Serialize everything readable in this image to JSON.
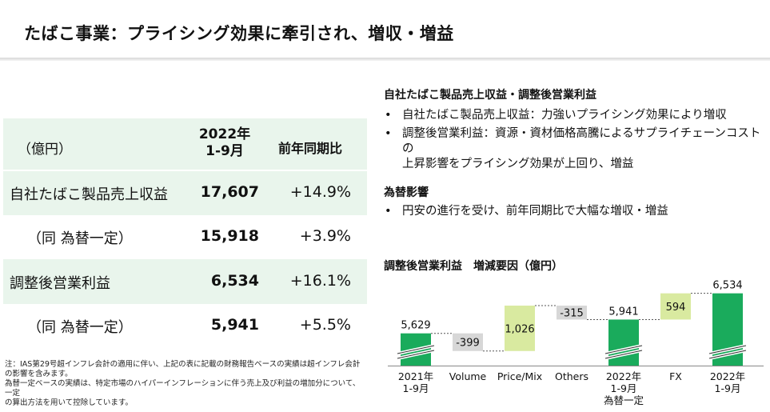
{
  "title": "たばこ事業：プライシング効果に牽引され、増収・増益",
  "table": {
    "unit": "（億円）",
    "period_line1": "2022年",
    "period_line2": "1-9月",
    "yoy_header": "前年同期比",
    "rows": [
      {
        "label": "自社たばこ製品売上収益",
        "value": "17,607",
        "yoy": "+14.9%"
      },
      {
        "label": "（同 為替一定）",
        "value": "15,918",
        "yoy": "+3.9%"
      },
      {
        "label": "調整後営業利益",
        "value": "6,534",
        "yoy": "+16.1%"
      },
      {
        "label": "（同 為替一定）",
        "value": "5,941",
        "yoy": "+5.5%"
      }
    ]
  },
  "notes": {
    "line1": "注：IAS第29号超インフレ会計の適用に伴い、上記の表に記載の財務報告ベースの実績は超インフレ会計",
    "line2": "の影響を含みます。",
    "line3": "為替一定ベースの実績は、特定市場のハイパーインフレーションに伴う売上及び利益の増加分について、一定",
    "line4": "の算出方法を用いて控除しています。"
  },
  "right": {
    "section1_heading": "自社たばこ製品売上収益・調整後営業利益",
    "bullet1": "自社たばこ製品売上収益：力強いプライシング効果により増収",
    "bullet2_line1": "調整後営業利益：資源・資材価格高騰によるサプライチェーンコストの",
    "bullet2_line2": "上昇影響をプライシング効果が上回り、増益",
    "section2_heading": "為替影響",
    "bullet3": "円安の進行を受け、前年同期比で大幅な増収・増益",
    "bullet_char": "•"
  },
  "chart_data": {
    "type": "bar",
    "title": "調整後営業利益　増減要因（億円）",
    "subtype": "waterfall",
    "categories": [
      {
        "line1": "2021年",
        "line2": "1-9月",
        "line3": ""
      },
      {
        "line1": "Volume",
        "line2": "",
        "line3": ""
      },
      {
        "line1": "Price/Mix",
        "line2": "",
        "line3": ""
      },
      {
        "line1": "Others",
        "line2": "",
        "line3": ""
      },
      {
        "line1": "2022年",
        "line2": "1-9月",
        "line3": "為替一定"
      },
      {
        "line1": "FX",
        "line2": "",
        "line3": ""
      },
      {
        "line1": "2022年",
        "line2": "1-9月",
        "line3": ""
      }
    ],
    "bars": [
      {
        "kind": "total",
        "start": 0,
        "end": 5629,
        "label": "5,629"
      },
      {
        "kind": "delta",
        "start": 5629,
        "end": 5230,
        "label": "-399"
      },
      {
        "kind": "delta",
        "start": 5230,
        "end": 6256,
        "label": "1,026"
      },
      {
        "kind": "delta",
        "start": 6256,
        "end": 5941,
        "label": "-315"
      },
      {
        "kind": "total",
        "start": 0,
        "end": 5941,
        "label": "5,941"
      },
      {
        "kind": "delta",
        "start": 5941,
        "end": 6534,
        "label": "594"
      },
      {
        "kind": "total",
        "start": 0,
        "end": 6534,
        "label": "6,534"
      }
    ],
    "axis_break": true,
    "colors": {
      "total": "#1aab5c",
      "increase": "#d9eaa0",
      "decrease": "#d7d7d7",
      "connector": "#555555"
    }
  }
}
